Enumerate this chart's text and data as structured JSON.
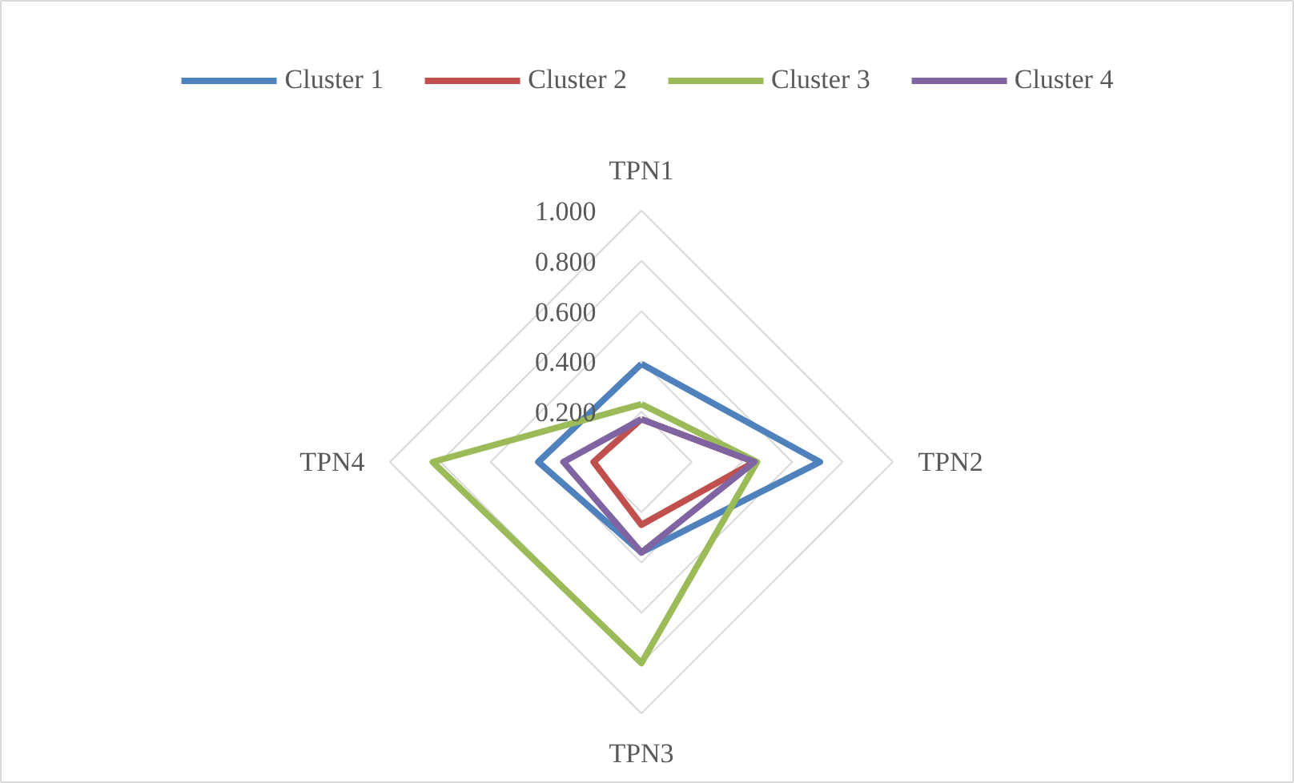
{
  "chart_data": {
    "type": "radar",
    "categories": [
      "TPN1",
      "TPN2",
      "TPN3",
      "TPN4"
    ],
    "series": [
      {
        "name": "Cluster 1",
        "color": "#4f81bd",
        "values": [
          0.39,
          0.71,
          0.36,
          0.41
        ]
      },
      {
        "name": "Cluster 2",
        "color": "#c0504d",
        "values": [
          0.17,
          0.45,
          0.25,
          0.19
        ]
      },
      {
        "name": "Cluster 3",
        "color": "#9bbb59",
        "values": [
          0.23,
          0.46,
          0.8,
          0.83
        ]
      },
      {
        "name": "Cluster 4",
        "color": "#8064a2",
        "values": [
          0.17,
          0.45,
          0.36,
          0.31
        ]
      }
    ],
    "ylim": [
      0,
      1
    ],
    "yticks": [
      {
        "value": 0.2,
        "label": "0.200"
      },
      {
        "value": 0.4,
        "label": "0.400"
      },
      {
        "value": 0.6,
        "label": "0.600"
      },
      {
        "value": 0.8,
        "label": "0.800"
      },
      {
        "value": 1,
        "label": "1.000"
      }
    ],
    "grid": true,
    "legend": "top"
  }
}
